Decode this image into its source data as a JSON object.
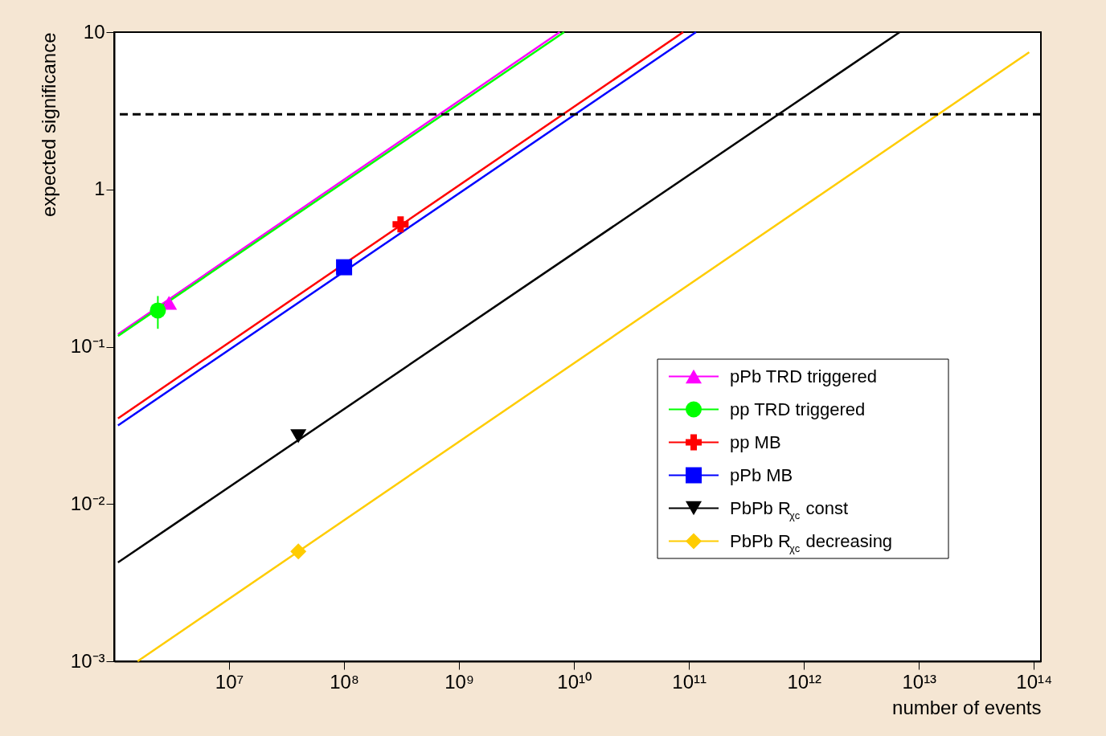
{
  "chart_data": {
    "type": "line",
    "xlabel": "number of events",
    "ylabel": "expected significance",
    "log": "xy",
    "grid": false,
    "legend": "bottom right",
    "xlim": [
      1000000,
      115000000000000
    ],
    "ylim": [
      0.001,
      10
    ],
    "xticks": [
      {
        "value": 10000000,
        "label": "10⁷"
      },
      {
        "value": 100000000,
        "label": "10⁸"
      },
      {
        "value": 1000000000,
        "label": "10⁹"
      },
      {
        "value": 10000000000,
        "label": "10¹⁰"
      },
      {
        "value": 100000000000,
        "label": "10¹¹"
      },
      {
        "value": 1000000000000,
        "label": "10¹²"
      },
      {
        "value": 10000000000000,
        "label": "10¹³"
      },
      {
        "value": 100000000000000,
        "label": "10¹⁴"
      }
    ],
    "yticks": [
      {
        "value": 0.001,
        "label": "10⁻³"
      },
      {
        "value": 0.01,
        "label": "10⁻²"
      },
      {
        "value": 0.1,
        "label": "10⁻¹"
      },
      {
        "value": 1,
        "label": "1"
      },
      {
        "value": 10,
        "label": "10"
      }
    ],
    "ref_lines": [
      {
        "axis": "y",
        "value": 3,
        "color": "#000000",
        "line_style": "dashed"
      }
    ],
    "series": [
      {
        "name": "pPb TRD triggered",
        "color": "#ff00ff",
        "marker": "none",
        "x": [
          1080000,
          7500000000
        ],
        "values": [
          0.12,
          10
        ]
      },
      {
        "name": "pp TRD triggered",
        "color": "#00ff00",
        "marker": "none",
        "x": [
          1080000,
          8200000000
        ],
        "values": [
          0.117,
          10
        ]
      },
      {
        "name": "pp MB",
        "color": "#ff0000",
        "marker": "none",
        "x": [
          1080000,
          89000000000
        ],
        "values": [
          0.035,
          10
        ]
      },
      {
        "name": "pPb MB",
        "color": "#0000ff",
        "marker": "none",
        "x": [
          1080000,
          115000000000
        ],
        "values": [
          0.0316,
          10
        ]
      },
      {
        "name": "PbPb R$_{χc}$ const",
        "color": "#000000",
        "marker": "none",
        "x": [
          1080000,
          6800000000000
        ],
        "values": [
          0.00425,
          10
        ]
      },
      {
        "name": "PbPb R$_{χc}$ decreasing",
        "color": "#ffcc00",
        "marker": "none",
        "x": [
          1600000,
          91000000000000
        ],
        "values": [
          0.001,
          7.45
        ]
      },
      {
        "type": "scatter",
        "color": "#ff00ff",
        "marker": "triangle",
        "x": [
          3000000
        ],
        "values": [
          0.19
        ]
      },
      {
        "type": "scatter",
        "color": "#00ff00",
        "marker": "circle",
        "x": [
          2400000
        ],
        "values": [
          0.17
        ],
        "errors": [
          [
            0.13,
            0.21
          ]
        ]
      },
      {
        "type": "scatter",
        "color": "#ff0000",
        "marker": "cross",
        "x": [
          310000000
        ],
        "values": [
          0.6
        ]
      },
      {
        "type": "scatter",
        "color": "#0000ff",
        "marker": "square",
        "x": [
          100000000
        ],
        "values": [
          0.32
        ]
      },
      {
        "type": "scatter",
        "color": "#000000",
        "marker": "triangle_down",
        "x": [
          40000000
        ],
        "values": [
          0.027
        ]
      },
      {
        "type": "scatter",
        "color": "#ffcc00",
        "marker": "diamond",
        "x": [
          40000000
        ],
        "values": [
          0.005
        ]
      }
    ]
  }
}
